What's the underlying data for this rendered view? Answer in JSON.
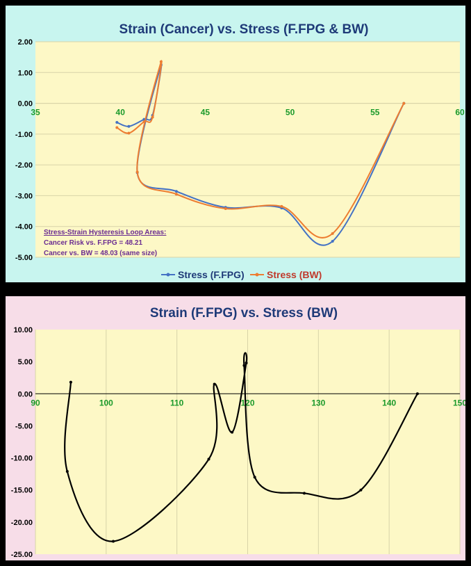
{
  "chart_data": [
    {
      "type": "scatter",
      "title": "Strain (Cancer) vs. Stress (F.FPG & BW)",
      "xlim": [
        35,
        60
      ],
      "ylim": [
        -5,
        2
      ],
      "x_ticks": [
        "35",
        "40",
        "45",
        "50",
        "55",
        "60"
      ],
      "y_ticks": [
        "2.00",
        "1.00",
        "0.00",
        "-1.00",
        "-2.00",
        "-3.00",
        "-4.00",
        "-5.00"
      ],
      "grid": "horizontal",
      "legend_position": "bottom",
      "annotation": {
        "heading": "Stress-Strain Hysteresis Loop Areas:",
        "lines": [
          "Cancer Risk vs. F.FPG = 48.21",
          "Cancer vs. BW = 48.03 (same size)"
        ]
      },
      "series": [
        {
          "name": "Stress (F.FPG)",
          "color": "#4472c4",
          "x": [
            39.8,
            40.5,
            41.4,
            41.9,
            42.4,
            41.0,
            43.3,
            46.2,
            49.5,
            52.5,
            56.7
          ],
          "y": [
            -0.62,
            -0.75,
            -0.52,
            -0.39,
            1.25,
            -2.25,
            -2.86,
            -3.38,
            -3.4,
            -4.48,
            0.0
          ]
        },
        {
          "name": "Stress (BW)",
          "color": "#ed7d31",
          "x": [
            39.8,
            40.5,
            41.4,
            41.9,
            42.4,
            41.0,
            43.3,
            46.2,
            49.5,
            52.5,
            56.7
          ],
          "y": [
            -0.79,
            -0.97,
            -0.6,
            -0.45,
            1.35,
            -2.23,
            -2.95,
            -3.42,
            -3.35,
            -4.23,
            0.0
          ]
        }
      ]
    },
    {
      "type": "scatter",
      "title": "Strain (F.FPG) vs. Stress (BW)",
      "xlim": [
        90,
        150
      ],
      "ylim": [
        -25,
        10
      ],
      "x_ticks": [
        "90",
        "100",
        "110",
        "120",
        "130",
        "140",
        "150"
      ],
      "y_ticks": [
        "10.00",
        "5.00",
        "0.00",
        "-5.00",
        "-10.00",
        "-15.00",
        "-20.00",
        "-25.00"
      ],
      "grid": "vertical",
      "series": [
        {
          "color": "#000000",
          "x": [
            95.0,
            94.5,
            101.0,
            114.5,
            115.3,
            117.8,
            119.8,
            119.5,
            121.0,
            128.0,
            136.0,
            144.0
          ],
          "y": [
            1.8,
            -12.1,
            -23.0,
            -10.2,
            1.5,
            -6.0,
            4.8,
            4.4,
            -13.0,
            -15.5,
            -15.0,
            0.0
          ]
        }
      ]
    }
  ]
}
